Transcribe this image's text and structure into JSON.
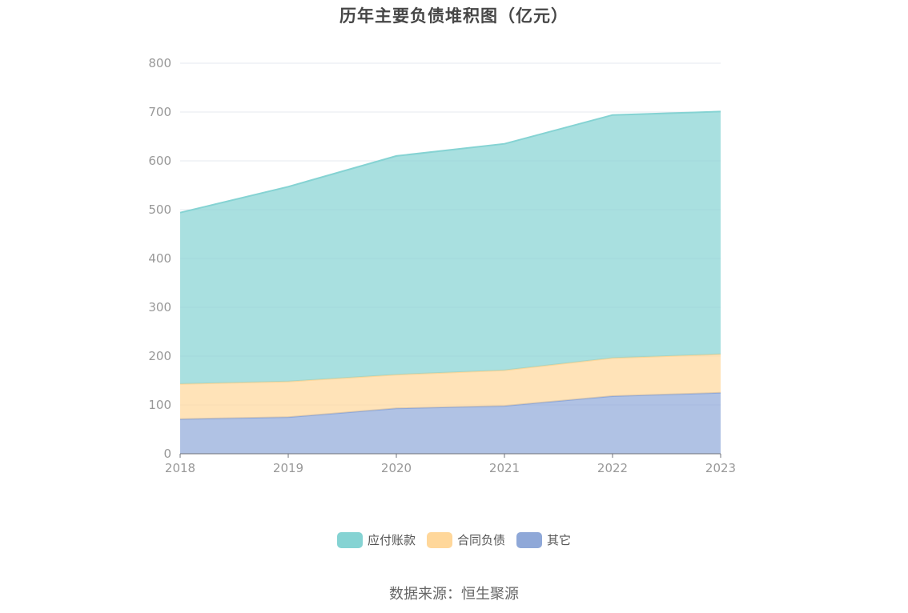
{
  "source": "数据来源：恒生聚源",
  "chart_data": {
    "type": "area",
    "stacked": true,
    "title": "历年主要负债堆积图（亿元）",
    "categories": [
      "2018",
      "2019",
      "2020",
      "2021",
      "2022",
      "2023"
    ],
    "ylim": [
      0,
      800
    ],
    "yticks": [
      "0",
      "100",
      "200",
      "300",
      "400",
      "500",
      "600",
      "700",
      "800"
    ],
    "grid": true,
    "legend_position": "bottom",
    "series": [
      {
        "name": "其它",
        "color": "#8fa8d8",
        "values": [
          71,
          75,
          93,
          98,
          118,
          125
        ]
      },
      {
        "name": "合同负债",
        "color": "#ffd79a",
        "values": [
          72,
          73,
          69,
          73,
          78,
          79
        ]
      },
      {
        "name": "应付账款",
        "color": "#85d3d3",
        "values": [
          351,
          399,
          448,
          464,
          498,
          497
        ]
      }
    ],
    "legend_order": [
      "应付账款",
      "合同负债",
      "其它"
    ]
  }
}
